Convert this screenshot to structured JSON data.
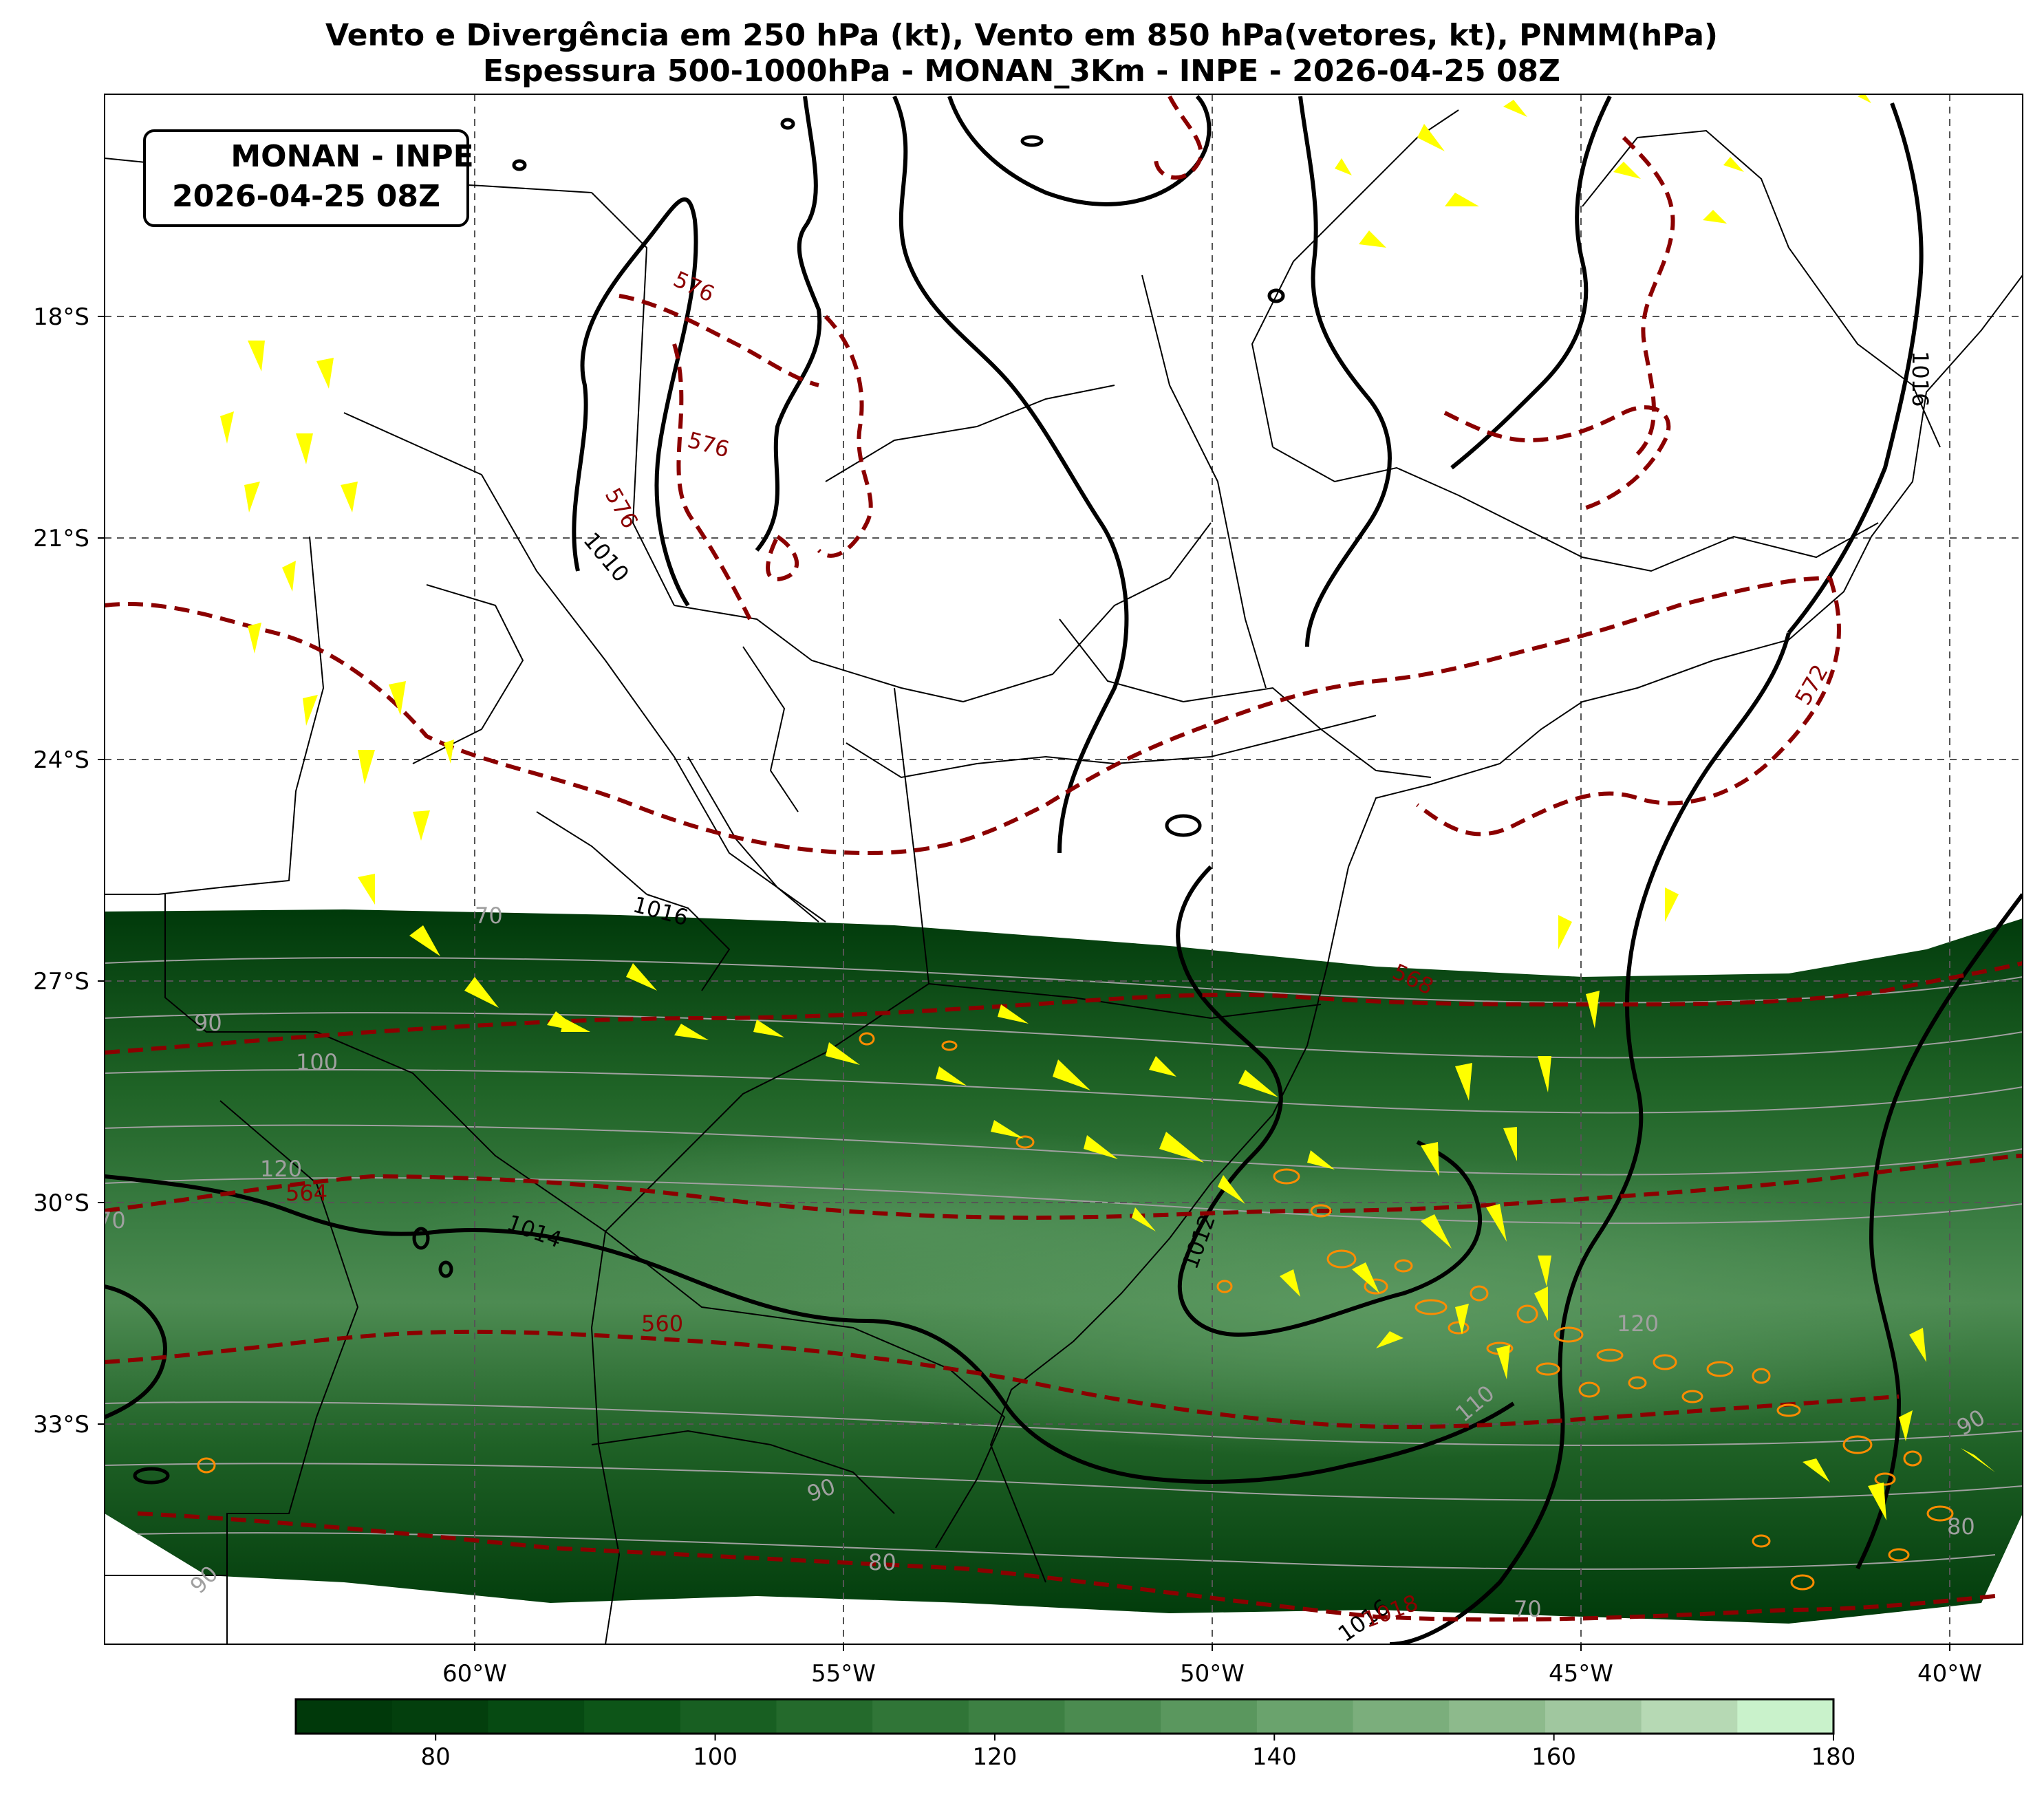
{
  "title": {
    "line1": "Vento e Divergência em 250 hPa (kt), Vento em 850 hPa(vetores, kt), PNMM(hPa)",
    "line2": "Espessura 500-1000hPa - MONAN_3Km - INPE - 2026-04-25 08Z"
  },
  "stamp": {
    "line1": "MONAN - INPE",
    "line2": "2026-04-25 08Z"
  },
  "axes": {
    "lat_ticks": [
      "18°S",
      "21°S",
      "24°S",
      "27°S",
      "30°S",
      "33°S"
    ],
    "lon_ticks": [
      "60°W",
      "55°W",
      "50°W",
      "45°W",
      "40°W"
    ],
    "extent": {
      "lon": [
        -65,
        -39
      ],
      "lat": [
        -36,
        -15
      ]
    },
    "gridlines": true
  },
  "colorbar": {
    "ticks": [
      "80",
      "100",
      "120",
      "140",
      "160",
      "180"
    ],
    "range": [
      70,
      180
    ],
    "colors": [
      "#00390a",
      "#033f0d",
      "#064a12",
      "#0d5518",
      "#185f22",
      "#246a2c",
      "#307537",
      "#3d8043",
      "#4b8b50",
      "#5a975e",
      "#6aa36d",
      "#7bae7c",
      "#8dba8c",
      "#a0c79f",
      "#b6d9b4",
      "#c9f2cb"
    ]
  },
  "contour_labels": {
    "pressure": [
      "1010",
      "1016",
      "1014",
      "1012",
      "1016",
      "1016",
      "1018"
    ],
    "thickness": [
      "576",
      "576",
      "576",
      "572",
      "568",
      "564",
      "560"
    ],
    "wind": [
      "70",
      "90",
      "100",
      "120",
      "70",
      "120",
      "110",
      "90",
      "90",
      "80",
      "70",
      "80",
      "90"
    ]
  },
  "colors": {
    "wind_fill": "#1e5e22",
    "pressure_contour": "#000000",
    "thickness_contour": "#8b0000",
    "wind_contour": "#a0a0a0",
    "vectors": "#ffff00",
    "divergence": "#ff8c00"
  }
}
